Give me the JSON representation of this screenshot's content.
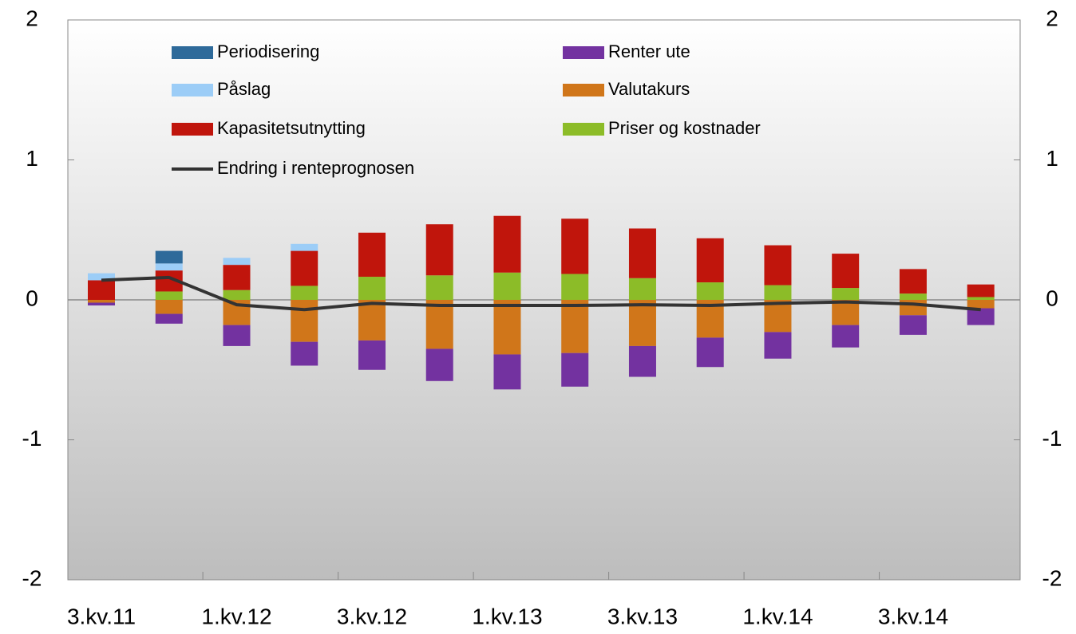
{
  "chart_data": {
    "type": "bar",
    "categories": [
      "3.kv.11",
      null,
      "1.kv.12",
      null,
      "3.kv.12",
      null,
      "1.kv.13",
      null,
      "3.kv.13",
      null,
      "1.kv.14",
      null,
      "3.kv.14",
      null
    ],
    "series": [
      {
        "name": "Priser og kostnader",
        "color": "#8cbc28",
        "values": [
          0,
          0.06,
          0.07,
          0.1,
          0.165,
          0.175,
          0.195,
          0.185,
          0.155,
          0.125,
          0.105,
          0.085,
          0.045,
          0.02
        ]
      },
      {
        "name": "Kapasitetsutnytting",
        "color": "#c0150c",
        "values": [
          0.14,
          0.15,
          0.18,
          0.25,
          0.315,
          0.365,
          0.405,
          0.395,
          0.355,
          0.315,
          0.285,
          0.245,
          0.175,
          0.09
        ]
      },
      {
        "name": "Påslag",
        "color": "#9ccdf7",
        "values": [
          0.05,
          0.05,
          0.05,
          0.05,
          0,
          0,
          0,
          0,
          0,
          0,
          0,
          0,
          0,
          0
        ]
      },
      {
        "name": "Periodisering",
        "color": "#2e6a9a",
        "values": [
          0,
          0.09,
          0,
          0,
          0,
          0,
          0,
          0,
          0,
          0,
          0,
          0,
          0,
          0
        ]
      },
      {
        "name": "Valutakurs",
        "color": "#d0761a",
        "values": [
          -0.02,
          -0.1,
          -0.18,
          -0.3,
          -0.29,
          -0.35,
          -0.39,
          -0.38,
          -0.33,
          -0.27,
          -0.23,
          -0.18,
          -0.11,
          -0.06
        ]
      },
      {
        "name": "Renter ute",
        "color": "#7332a0",
        "values": [
          -0.02,
          -0.07,
          -0.15,
          -0.17,
          -0.21,
          -0.23,
          -0.25,
          -0.24,
          -0.22,
          -0.21,
          -0.19,
          -0.16,
          -0.14,
          -0.12
        ]
      },
      {
        "name": "Endring i renteprognosen",
        "color": "#333333",
        "type": "line",
        "values": [
          0.14,
          0.16,
          -0.035,
          -0.07,
          -0.025,
          -0.04,
          -0.04,
          -0.04,
          -0.035,
          -0.04,
          -0.025,
          -0.015,
          -0.03,
          -0.07
        ]
      }
    ],
    "ylim": [
      -2,
      2
    ],
    "yticks": [
      -2,
      -1,
      0,
      1,
      2
    ],
    "y2lim": [
      -2,
      2
    ],
    "y2ticks": [
      -2,
      -1,
      0,
      1,
      2
    ],
    "stacked": true,
    "legend": "top-left"
  }
}
